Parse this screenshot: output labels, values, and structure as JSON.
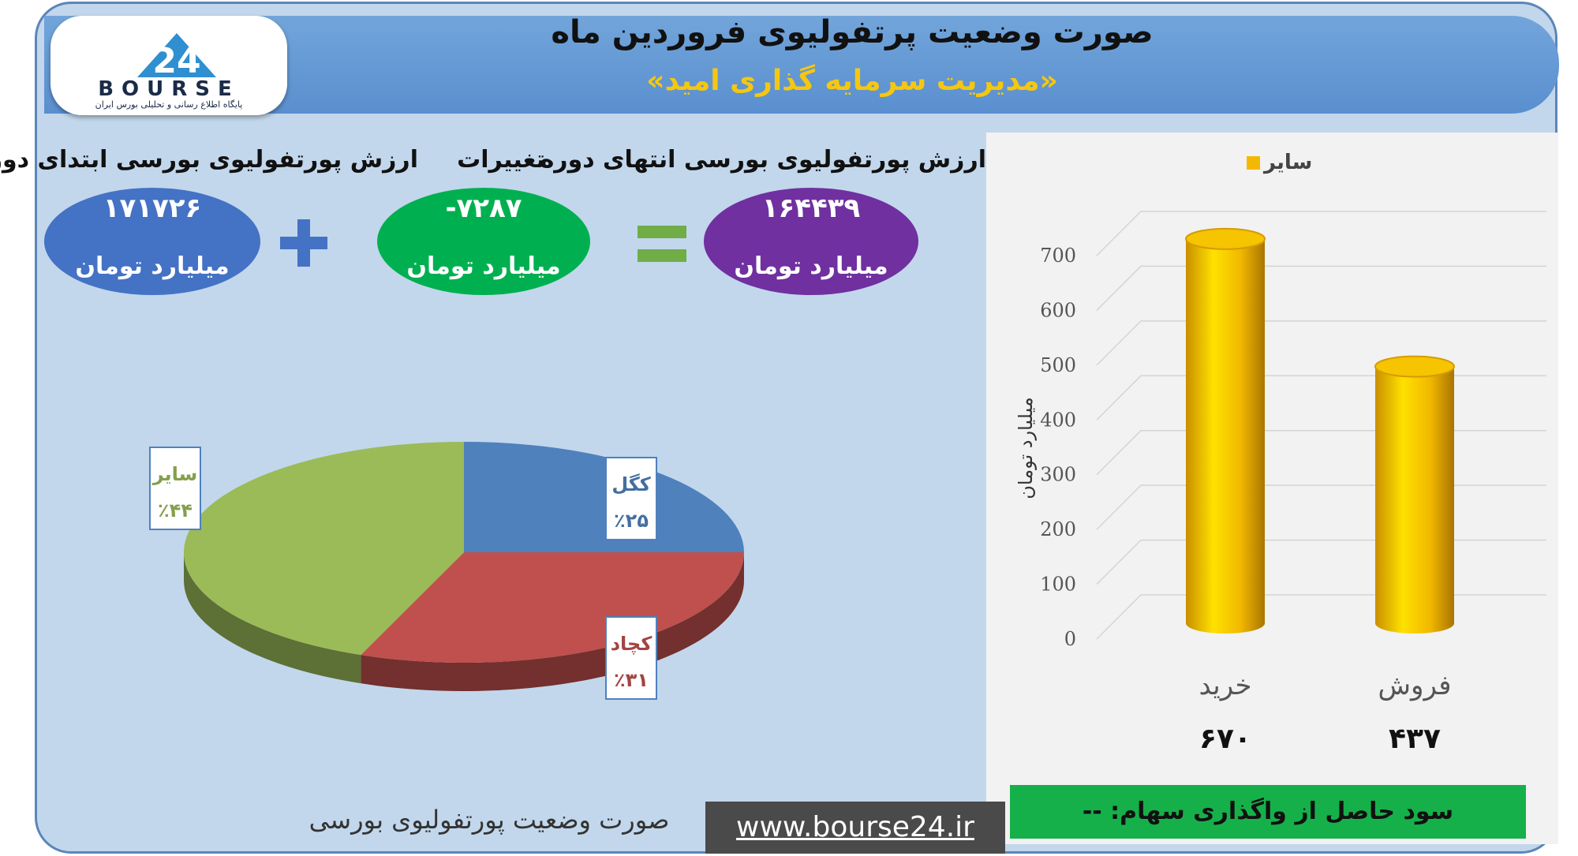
{
  "header": {
    "title": "صورت وضعیت پرتفولیوی فروردین ماه",
    "subtitle": "«مدیریت سرمایه گذاری امید»",
    "logo_text": "BOURSE",
    "logo_sub": "پایگاه اطلاع رسانی و تحلیلی بورس ایران"
  },
  "summary": {
    "start_label": "ارزش پورتفولیوی بورسی ابتدای دوره",
    "start_value": "۱۷۱۷۲۶",
    "change_label": "تغییرات",
    "change_value": "-۷۲۸۷",
    "end_label": "ارزش پورتفولیوی بورسی انتهای دوره",
    "end_value": "۱۶۴۴۳۹",
    "unit": "میلیارد تومان",
    "colors": {
      "start": "#4472c4",
      "change": "#00b050",
      "end": "#7030a0",
      "plus": "#4472c4",
      "equals": "#70ad47"
    }
  },
  "chart_data": [
    {
      "type": "pie",
      "slices": [
        {
          "name": "کگل",
          "percent": 25,
          "label": "٪۲۵",
          "color": "#4f81bd"
        },
        {
          "name": "کچاد",
          "percent": 31,
          "label": "٪۳۱",
          "color": "#c0504d"
        },
        {
          "name": "سایر",
          "percent": 44,
          "label": "٪۴۴",
          "color": "#9bbb59"
        }
      ]
    },
    {
      "type": "bar",
      "legend": "سایر",
      "legend_color": "#f5b800",
      "ylabel": "میلیارد تومان",
      "ylim": [
        0,
        700
      ],
      "yticks": [
        "0",
        "100",
        "200",
        "300",
        "400",
        "500",
        "600",
        "700"
      ],
      "categories": [
        "خرید",
        "فروش"
      ],
      "values": [
        670,
        437
      ],
      "value_labels": [
        "۶۷۰",
        "۴۳۷"
      ]
    }
  ],
  "footer": {
    "caption": "صورت وضعیت پورتفولیوی بورسی",
    "site": "www.bourse24.ir",
    "profit": "سود حاصل از واگذاری سهام: --"
  }
}
